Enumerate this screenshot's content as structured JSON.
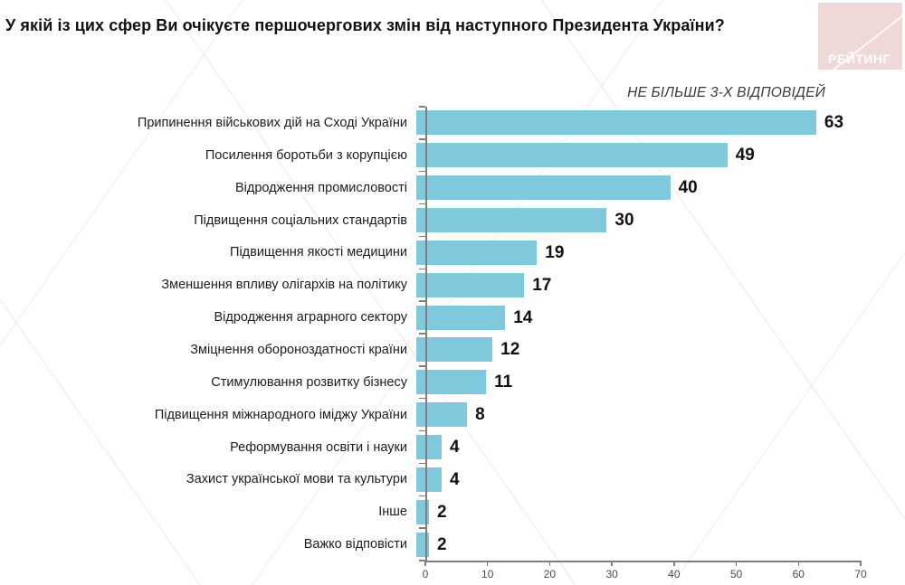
{
  "title": "У якій із цих сфер Ви очікуєте першочергових змін від наступного Президента України?",
  "logo": {
    "text": "РЕЙТИНГ",
    "bg_color": "#efd9d8",
    "text_color": "#ffffff"
  },
  "chart_data": {
    "type": "bar",
    "orientation": "horizontal",
    "note": "НЕ БІЛЬШЕ 3-Х ВІДПОВІДЕЙ",
    "categories": [
      "Припинення військових дій на Сході України",
      "Посилення боротьби з корупцією",
      "Відродження промисловості",
      "Підвищення соціальних стандартів",
      "Підвищення якості медицини",
      "Зменшення впливу олігархів на політику",
      "Відродження аграрного сектору",
      "Зміцнення обороноздатності країни",
      "Стимулювання розвитку бізнесу",
      "Підвищення міжнародного іміджу України",
      "Реформування освіти і науки",
      "Захист української мови та культури",
      "Інше",
      "Важко відповісти"
    ],
    "values": [
      63,
      49,
      40,
      30,
      19,
      17,
      14,
      12,
      11,
      8,
      4,
      4,
      2,
      2
    ],
    "bar_color": "#80c9dc",
    "xlim": [
      0,
      70
    ],
    "x_ticks": [
      0,
      10,
      20,
      30,
      40,
      50,
      60,
      70
    ],
    "xlabel": "",
    "ylabel": "",
    "grid": false,
    "legend_position": "none",
    "value_labels": true
  }
}
